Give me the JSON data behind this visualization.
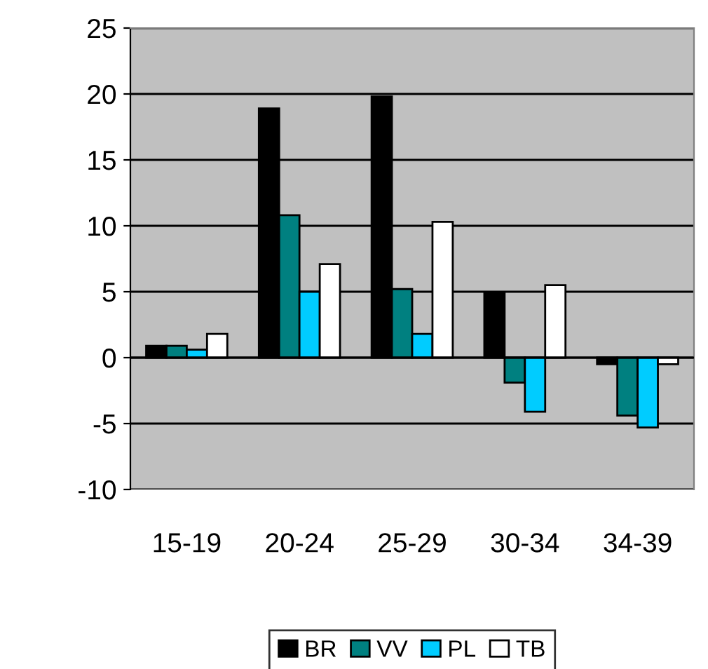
{
  "chart_data": {
    "type": "bar",
    "categories": [
      "15-19",
      "20-24",
      "25-29",
      "30-34",
      "34-39"
    ],
    "series": [
      {
        "name": "BR",
        "color": "#000000",
        "values": [
          0.9,
          18.9,
          19.8,
          4.9,
          -0.5
        ]
      },
      {
        "name": "VV",
        "color": "#008080",
        "values": [
          0.9,
          10.8,
          5.2,
          -1.9,
          -4.4
        ]
      },
      {
        "name": "PL",
        "color": "#00ccff",
        "values": [
          0.6,
          5.0,
          1.8,
          -4.1,
          -5.3
        ]
      },
      {
        "name": "TB",
        "color": "#ffffff",
        "values": [
          1.8,
          7.1,
          10.3,
          5.5,
          -0.5
        ]
      }
    ],
    "ylim": [
      -10,
      25
    ],
    "yticks": [
      -10,
      -5,
      0,
      5,
      10,
      15,
      20,
      25
    ],
    "grid": "y",
    "legend": "bottom"
  }
}
